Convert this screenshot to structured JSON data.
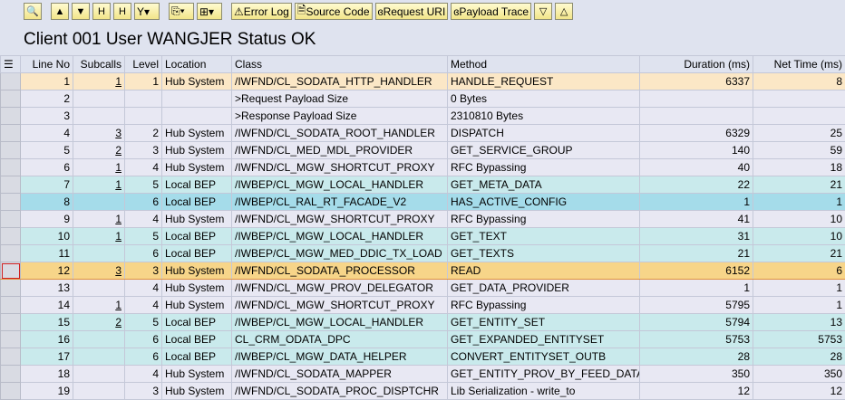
{
  "toolbar": {
    "buttons": [
      {
        "icon": "search-icon"
      },
      {
        "icon": "print-icon"
      },
      {
        "icon": "filter-icon"
      },
      {
        "icon": "find-icon"
      },
      {
        "icon": "find-next-icon"
      },
      {
        "icon": "filter-dropdown-icon"
      },
      {
        "icon": "export-icon"
      },
      {
        "icon": "layout-icon"
      }
    ],
    "error_log": "Error Log",
    "source_code": "Source Code",
    "request_uri": "Request URI",
    "payload_trace": "Payload Trace"
  },
  "title": "Client 001 User WANGJER Status OK",
  "columns": [
    "Line No",
    "Subcalls",
    "Level",
    "Location",
    "Class",
    "Method",
    "Duration (ms)",
    "Net Time (ms)"
  ],
  "rows": [
    {
      "style": "peach",
      "line": "1",
      "sub": "1",
      "level": "1",
      "loc": "Hub System",
      "cls": "/IWFND/CL_SODATA_HTTP_HANDLER",
      "method": "HANDLE_REQUEST",
      "dur": "6337",
      "net": "8"
    },
    {
      "style": "lav",
      "line": "2",
      "sub": "",
      "level": "",
      "loc": "",
      "cls": ">Request Payload Size",
      "method": "0 Bytes",
      "dur": "",
      "net": ""
    },
    {
      "style": "lav",
      "line": "3",
      "sub": "",
      "level": "",
      "loc": "",
      "cls": ">Response Payload Size",
      "method": "2310810 Bytes",
      "dur": "",
      "net": ""
    },
    {
      "style": "lav",
      "line": "4",
      "sub": "3",
      "level": "2",
      "loc": "Hub System",
      "cls": "/IWFND/CL_SODATA_ROOT_HANDLER",
      "method": "DISPATCH",
      "dur": "6329",
      "net": "25"
    },
    {
      "style": "lav",
      "line": "5",
      "sub": "2",
      "level": "3",
      "loc": "Hub System",
      "cls": "/IWFND/CL_MED_MDL_PROVIDER",
      "method": "GET_SERVICE_GROUP",
      "dur": "140",
      "net": "59"
    },
    {
      "style": "lav",
      "line": "6",
      "sub": "1",
      "level": "4",
      "loc": "Hub System",
      "cls": "/IWFND/CL_MGW_SHORTCUT_PROXY",
      "method": "RFC Bypassing",
      "dur": "40",
      "net": "18"
    },
    {
      "style": "teal",
      "line": "7",
      "sub": "1",
      "level": "5",
      "loc": "Local BEP",
      "cls": "/IWBEP/CL_MGW_LOCAL_HANDLER",
      "method": "GET_META_DATA",
      "dur": "22",
      "net": "21"
    },
    {
      "style": "blue",
      "line": "8",
      "sub": "",
      "level": "6",
      "loc": "Local BEP",
      "cls": "/IWBEP/CL_RAL_RT_FACADE_V2",
      "method": "HAS_ACTIVE_CONFIG",
      "dur": "1",
      "net": "1"
    },
    {
      "style": "lav",
      "line": "9",
      "sub": "1",
      "level": "4",
      "loc": "Hub System",
      "cls": "/IWFND/CL_MGW_SHORTCUT_PROXY",
      "method": "RFC Bypassing",
      "dur": "41",
      "net": "10"
    },
    {
      "style": "teal",
      "line": "10",
      "sub": "1",
      "level": "5",
      "loc": "Local BEP",
      "cls": "/IWBEP/CL_MGW_LOCAL_HANDLER",
      "method": "GET_TEXT",
      "dur": "31",
      "net": "10"
    },
    {
      "style": "teal",
      "line": "11",
      "sub": "",
      "level": "6",
      "loc": "Local BEP",
      "cls": "/IWBEP/CL_MGW_MED_DDIC_TX_LOAD",
      "method": "GET_TEXTS",
      "dur": "21",
      "net": "21"
    },
    {
      "style": "sel",
      "line": "12",
      "sub": "3",
      "level": "3",
      "loc": "Hub System",
      "cls": "/IWFND/CL_SODATA_PROCESSOR",
      "method": "READ",
      "dur": "6152",
      "net": "6"
    },
    {
      "style": "lav",
      "line": "13",
      "sub": "",
      "level": "4",
      "loc": "Hub System",
      "cls": "/IWFND/CL_MGW_PROV_DELEGATOR",
      "method": "GET_DATA_PROVIDER",
      "dur": "1",
      "net": "1"
    },
    {
      "style": "lav",
      "line": "14",
      "sub": "1",
      "level": "4",
      "loc": "Hub System",
      "cls": "/IWFND/CL_MGW_SHORTCUT_PROXY",
      "method": "RFC Bypassing",
      "dur": "5795",
      "net": "1"
    },
    {
      "style": "teal",
      "line": "15",
      "sub": "2",
      "level": "5",
      "loc": "Local BEP",
      "cls": "/IWBEP/CL_MGW_LOCAL_HANDLER",
      "method": "GET_ENTITY_SET",
      "dur": "5794",
      "net": "13"
    },
    {
      "style": "teal",
      "line": "16",
      "sub": "",
      "level": "6",
      "loc": "Local BEP",
      "cls": "CL_CRM_ODATA_DPC",
      "method": "GET_EXPANDED_ENTITYSET",
      "dur": "5753",
      "net": "5753"
    },
    {
      "style": "teal",
      "line": "17",
      "sub": "",
      "level": "6",
      "loc": "Local BEP",
      "cls": "/IWBEP/CL_MGW_DATA_HELPER",
      "method": "CONVERT_ENTITYSET_OUTB",
      "dur": "28",
      "net": "28"
    },
    {
      "style": "lav",
      "line": "18",
      "sub": "",
      "level": "4",
      "loc": "Hub System",
      "cls": "/IWFND/CL_SODATA_MAPPER",
      "method": "GET_ENTITY_PROV_BY_FEED_DATA",
      "dur": "350",
      "net": "350"
    },
    {
      "style": "lav",
      "line": "19",
      "sub": "",
      "level": "3",
      "loc": "Hub System",
      "cls": "/IWFND/CL_SODATA_PROC_DISPTCHR",
      "method": "Lib Serialization - write_to",
      "dur": "12",
      "net": "12"
    }
  ]
}
